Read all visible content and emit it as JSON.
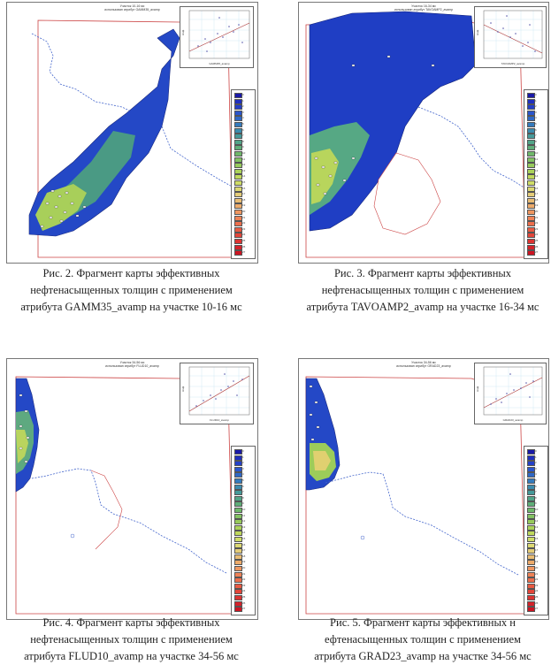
{
  "figures": [
    {
      "id": "fig2",
      "panel_title_1": "Участок 10-16 мс",
      "panel_title_2": "использован атрибут GAMM35_avamp",
      "scatter_xlabel": "GAMM35_avamp",
      "scatter_ylabel": "Нэф",
      "caption_line1": "Рис. 2. Фрагмент карты эффективных",
      "caption_line2": "нефтенасыщенных толщин с применением",
      "caption_line3": "атрибута GAMM35_avamp на участке 10-16 мс",
      "legend_values": [
        "0",
        "1",
        "2",
        "3",
        "4",
        "5",
        "6",
        "7",
        "8",
        "9",
        "10",
        "11",
        "12",
        "13",
        "14",
        "15",
        "16",
        "17",
        "18",
        "19",
        "20",
        "21",
        "22",
        "23",
        "24",
        "25",
        "26",
        "27"
      ]
    },
    {
      "id": "fig3",
      "panel_title_1": "Участок 16-34 мс",
      "panel_title_2": "использован атрибут TAVOAMP2_avamp",
      "scatter_xlabel": "TAVOAMP2_avamp",
      "scatter_ylabel": "Нэф",
      "caption_line1": "Рис. 3. Фрагмент карты эффективных",
      "caption_line2": "нефтенасыщенных толщин с применением",
      "caption_line3": "атрибута TAVOAMP2_avamp на участке 16-34 мс",
      "legend_values": [
        "0",
        "1",
        "2",
        "3",
        "4",
        "5",
        "6",
        "7",
        "8",
        "9",
        "10",
        "11",
        "12",
        "13",
        "14",
        "15",
        "16",
        "17",
        "18",
        "19",
        "20",
        "21",
        "22",
        "23",
        "24",
        "25",
        "26",
        "27"
      ]
    },
    {
      "id": "fig4",
      "panel_title_1": "Участок 34-56 мс",
      "panel_title_2": "использован атрибут FLUD10_avamp",
      "scatter_xlabel": "FLUD10_avamp",
      "scatter_ylabel": "Нэф",
      "caption_line1": "Рис. 4. Фрагмент карты эффективных",
      "caption_line2": "нефтенасыщенных толщин с применением",
      "caption_line3": "атрибута FLUD10_avamp на участке 34-56 мс",
      "legend_values": [
        "0",
        "1",
        "2",
        "3",
        "4",
        "5",
        "6",
        "7",
        "8",
        "9",
        "10",
        "11",
        "12",
        "13",
        "14",
        "15",
        "16",
        "17",
        "18",
        "19",
        "20",
        "21",
        "22",
        "23",
        "24",
        "25",
        "26",
        "27"
      ]
    },
    {
      "id": "fig5",
      "panel_title_1": "Участок 34-56 мс",
      "panel_title_2": "использован атрибут GRAD23_avamp",
      "scatter_xlabel": "GRAD23_avamp",
      "scatter_ylabel": "Нэф",
      "caption_line1": "Рис. 5. Фрагмент карты эффективных н",
      "caption_line2": "ефтенасыщенных толщин с применением",
      "caption_line3": "атрибута GRAD23_avamp на участке 34-56 мс",
      "legend_values": [
        "0",
        "1",
        "2",
        "3",
        "4",
        "5",
        "6",
        "7",
        "8",
        "9",
        "10",
        "11",
        "12",
        "13",
        "14",
        "15",
        "16",
        "17",
        "18",
        "19",
        "20",
        "21",
        "22",
        "23",
        "24",
        "25",
        "26",
        "27"
      ]
    }
  ],
  "legend_colors": [
    "#1a1aa8",
    "#1f2fbf",
    "#2440c8",
    "#2a55cc",
    "#2f68c6",
    "#357bbd",
    "#3c8cae",
    "#469a9a",
    "#52a488",
    "#5fae78",
    "#6fb86a",
    "#83c262",
    "#97ca5c",
    "#abd25a",
    "#bfd85c",
    "#cfdc66",
    "#dcd872",
    "#e4cc78",
    "#e8bc74",
    "#ecaa6a",
    "#ee9660",
    "#ee8256",
    "#ec6e4c",
    "#e85a42",
    "#e2463a",
    "#dc3432",
    "#d4222a",
    "#cc1422"
  ]
}
